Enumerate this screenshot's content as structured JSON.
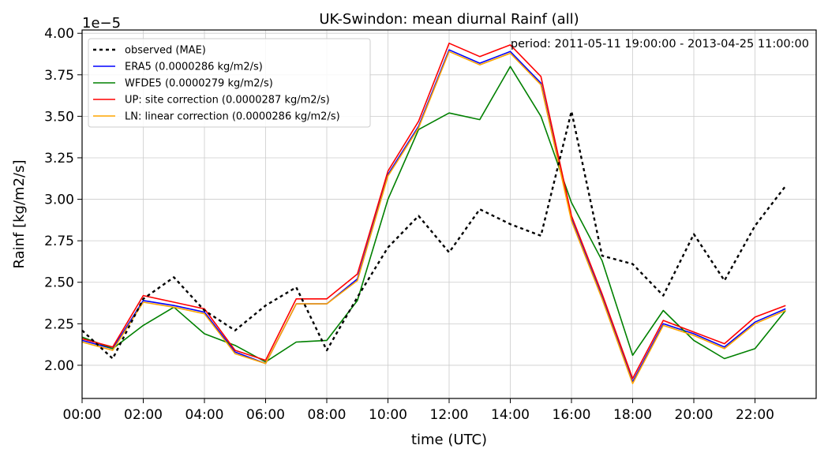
{
  "chart_data": {
    "type": "line",
    "title": "UK-Swindon: mean diurnal Rainf (all)",
    "xlabel": "time (UTC)",
    "ylabel": "Rainf [kg/m2/s]",
    "offset_label": "1e−5",
    "annotation": "period: 2011-05-11 19:00:00 - 2013-04-25 11:00:00",
    "x_hours": [
      0,
      1,
      2,
      3,
      4,
      5,
      6,
      7,
      8,
      9,
      10,
      11,
      12,
      13,
      14,
      15,
      16,
      17,
      18,
      19,
      20,
      21,
      22,
      23
    ],
    "x_tick_labels": [
      "00:00",
      "02:00",
      "04:00",
      "06:00",
      "08:00",
      "10:00",
      "12:00",
      "14:00",
      "16:00",
      "18:00",
      "20:00",
      "22:00"
    ],
    "xlim": [
      0,
      24
    ],
    "ylim": [
      1.8,
      4.02
    ],
    "y_ticks": [
      2.0,
      2.25,
      2.5,
      2.75,
      3.0,
      3.25,
      3.5,
      3.75,
      4.0
    ],
    "y_tick_labels": [
      "2.00",
      "2.25",
      "2.50",
      "2.75",
      "3.00",
      "3.25",
      "3.50",
      "3.75",
      "4.00"
    ],
    "grid": true,
    "legend_position": "top-left",
    "series": [
      {
        "name": "observed (MAE)",
        "color": "#000000",
        "dashed": true,
        "values": [
          2.21,
          2.04,
          2.4,
          2.53,
          2.33,
          2.21,
          2.36,
          2.47,
          2.09,
          2.41,
          2.71,
          2.9,
          2.68,
          2.94,
          2.85,
          2.78,
          3.53,
          2.66,
          2.61,
          2.42,
          2.79,
          2.51,
          2.84,
          3.08
        ]
      },
      {
        "name": "ERA5 (0.0000286 kg/m2/s)",
        "color": "#0000ff",
        "dashed": false,
        "values": [
          2.15,
          2.1,
          2.39,
          2.36,
          2.32,
          2.08,
          2.01,
          2.37,
          2.37,
          2.52,
          3.15,
          3.44,
          3.9,
          3.82,
          3.89,
          3.7,
          2.88,
          2.41,
          1.9,
          2.25,
          2.19,
          2.11,
          2.26,
          2.34
        ]
      },
      {
        "name": "WFDE5 (0.0000279 kg/m2/s)",
        "color": "#008000",
        "dashed": false,
        "values": [
          2.17,
          2.1,
          2.24,
          2.35,
          2.19,
          2.12,
          2.02,
          2.14,
          2.15,
          2.39,
          3.0,
          3.42,
          3.52,
          3.48,
          3.8,
          3.5,
          2.98,
          2.63,
          2.06,
          2.33,
          2.15,
          2.04,
          2.1,
          2.33
        ]
      },
      {
        "name": "UP: site correction (0.0000287 kg/m2/s)",
        "color": "#ff0000",
        "dashed": false,
        "values": [
          2.16,
          2.11,
          2.42,
          2.38,
          2.34,
          2.09,
          2.03,
          2.4,
          2.4,
          2.55,
          3.17,
          3.47,
          3.94,
          3.86,
          3.93,
          3.74,
          2.9,
          2.43,
          1.92,
          2.27,
          2.2,
          2.13,
          2.29,
          2.36
        ]
      },
      {
        "name": "LN: linear correction (0.0000286 kg/m2/s)",
        "color": "#ffa500",
        "dashed": false,
        "values": [
          2.14,
          2.09,
          2.38,
          2.35,
          2.31,
          2.07,
          2.01,
          2.37,
          2.37,
          2.51,
          3.14,
          3.43,
          3.89,
          3.81,
          3.88,
          3.69,
          2.87,
          2.4,
          1.89,
          2.24,
          2.18,
          2.1,
          2.25,
          2.33
        ]
      }
    ]
  }
}
